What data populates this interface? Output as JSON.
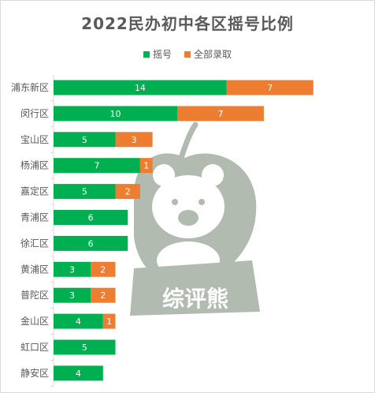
{
  "chart_data": {
    "type": "bar",
    "orientation": "horizontal",
    "stacked": true,
    "title": "2022民办初中各区摇号比例",
    "categories": [
      "浦东新区",
      "闵行区",
      "宝山区",
      "杨浦区",
      "嘉定区",
      "青浦区",
      "徐汇区",
      "黄浦区",
      "普陀区",
      "金山区",
      "虹口区",
      "静安区"
    ],
    "series": [
      {
        "name": "摇号",
        "color": "#00b050",
        "values": [
          14,
          10,
          5,
          7,
          5,
          6,
          6,
          3,
          3,
          4,
          5,
          4
        ]
      },
      {
        "name": "全部录取",
        "color": "#ed7d31",
        "values": [
          7,
          7,
          3,
          1,
          2,
          0,
          0,
          2,
          2,
          1,
          0,
          0
        ]
      }
    ],
    "xlim": [
      0,
      21
    ],
    "legend_position": "top",
    "grid": false
  },
  "watermark": {
    "text": "综评熊"
  }
}
